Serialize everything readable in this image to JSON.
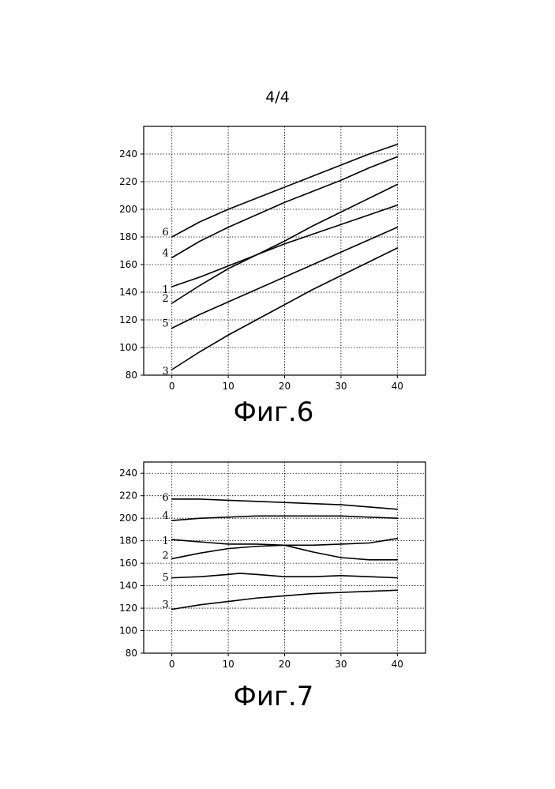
{
  "page": {
    "number": "4/4"
  },
  "chart_data": [
    {
      "type": "line",
      "caption": "Фиг.6",
      "xlim": [
        -5,
        45
      ],
      "ylim": [
        80,
        260
      ],
      "x_ticks": [
        0,
        10,
        20,
        30,
        40
      ],
      "y_ticks": [
        80,
        100,
        120,
        140,
        160,
        180,
        200,
        220,
        240
      ],
      "grid": true,
      "series": [
        {
          "name": "1",
          "x": [
            0,
            5,
            10,
            15,
            20,
            25,
            30,
            35,
            40
          ],
          "y": [
            144,
            151,
            159,
            167,
            175,
            182,
            189,
            196,
            203
          ]
        },
        {
          "name": "2",
          "x": [
            0,
            5,
            10,
            15,
            20,
            25,
            30,
            35,
            40
          ],
          "y": [
            132,
            145,
            157,
            167,
            177,
            188,
            198,
            208,
            218
          ]
        },
        {
          "name": "3",
          "x": [
            0,
            5,
            10,
            15,
            20,
            25,
            30,
            35,
            40
          ],
          "y": [
            84,
            97,
            109,
            120,
            131,
            142,
            152,
            162,
            172
          ]
        },
        {
          "name": "4",
          "x": [
            0,
            5,
            10,
            15,
            20,
            25,
            30,
            35,
            40
          ],
          "y": [
            165,
            177,
            187,
            196,
            205,
            213,
            221,
            230,
            238
          ]
        },
        {
          "name": "5",
          "x": [
            0,
            5,
            10,
            15,
            20,
            25,
            30,
            35,
            40
          ],
          "y": [
            114,
            124,
            133,
            142,
            151,
            160,
            169,
            178,
            187
          ]
        },
        {
          "name": "6",
          "x": [
            0,
            5,
            10,
            15,
            20,
            25,
            30,
            35,
            40
          ],
          "y": [
            180,
            191,
            200,
            208,
            216,
            224,
            232,
            240,
            247
          ]
        }
      ]
    },
    {
      "type": "line",
      "caption": "Фиг.7",
      "xlim": [
        -5,
        45
      ],
      "ylim": [
        80,
        250
      ],
      "x_ticks": [
        0,
        10,
        20,
        30,
        40
      ],
      "y_ticks": [
        80,
        100,
        120,
        140,
        160,
        180,
        200,
        220,
        240
      ],
      "grid": true,
      "series": [
        {
          "name": "1",
          "x": [
            0,
            5,
            10,
            15,
            20,
            25,
            30,
            35,
            40
          ],
          "y": [
            181,
            179,
            177,
            177,
            176,
            170,
            165,
            163,
            163
          ]
        },
        {
          "name": "2",
          "x": [
            0,
            5,
            10,
            15,
            20,
            25,
            30,
            35,
            40
          ],
          "y": [
            164,
            169,
            173,
            175,
            176,
            176,
            177,
            178,
            182
          ]
        },
        {
          "name": "3",
          "x": [
            0,
            5,
            10,
            15,
            20,
            25,
            30,
            35,
            40
          ],
          "y": [
            119,
            123,
            126,
            129,
            131,
            133,
            134,
            135,
            136
          ]
        },
        {
          "name": "4",
          "x": [
            0,
            5,
            10,
            15,
            20,
            25,
            30,
            35,
            40
          ],
          "y": [
            198,
            200,
            201,
            202,
            202,
            202,
            202,
            201,
            200
          ]
        },
        {
          "name": "5",
          "x": [
            0,
            5,
            10,
            12,
            15,
            20,
            25,
            30,
            35,
            40
          ],
          "y": [
            147,
            148,
            150,
            151,
            150,
            148,
            148,
            149,
            148,
            147
          ]
        },
        {
          "name": "6",
          "x": [
            0,
            5,
            10,
            15,
            20,
            25,
            30,
            35,
            40
          ],
          "y": [
            217,
            217,
            216,
            215,
            214,
            213,
            212,
            210,
            208
          ]
        }
      ]
    }
  ]
}
